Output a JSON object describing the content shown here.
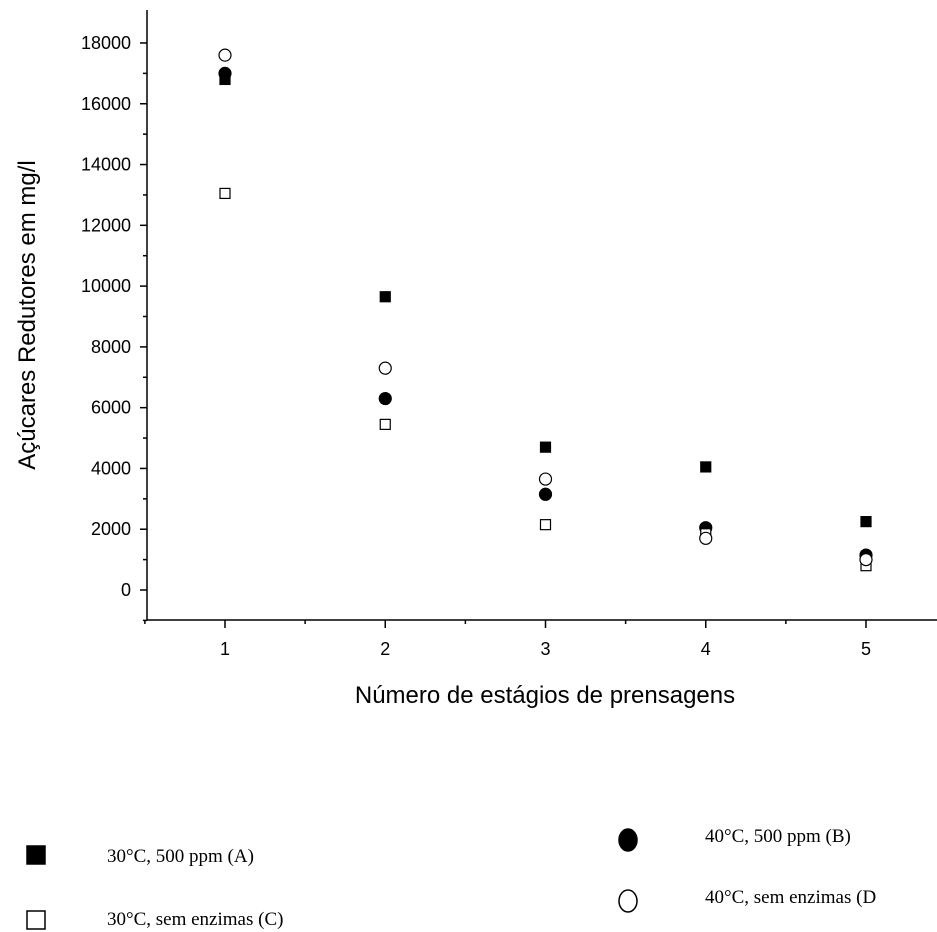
{
  "chart_data": {
    "type": "scatter",
    "title": "",
    "xlabel": "Número de estágios de prensagens",
    "ylabel": "Açúcares Redutores em mg/l",
    "xlim": [
      0.5,
      5.5
    ],
    "ylim": [
      -1000,
      18500
    ],
    "xticks": [
      1,
      2,
      3,
      4,
      5
    ],
    "xtick_labels": [
      "1",
      "2",
      "3",
      "4",
      "5"
    ],
    "yticks": [
      0,
      2000,
      4000,
      6000,
      8000,
      10000,
      12000,
      14000,
      16000,
      18000
    ],
    "ytick_labels": [
      "0",
      "2000",
      "4000",
      "6000",
      "8000",
      "10000",
      "12000",
      "14000",
      "16000",
      "18000"
    ],
    "grid": false,
    "legend_position": "bottom",
    "series": [
      {
        "name": "30°C, 500 ppm (A)",
        "marker": "square-filled",
        "x": [
          1,
          2,
          3,
          4,
          5
        ],
        "y": [
          16800,
          9650,
          4700,
          4050,
          2250
        ]
      },
      {
        "name": "40°C, 500 ppm (B)",
        "marker": "circle-filled",
        "x": [
          1,
          2,
          3,
          4,
          5
        ],
        "y": [
          17000,
          6300,
          3150,
          2050,
          1150
        ]
      },
      {
        "name": "30°C, sem enzimas (C)",
        "marker": "square-open",
        "x": [
          1,
          2,
          3,
          4,
          5
        ],
        "y": [
          13050,
          5450,
          2150,
          1850,
          800
        ]
      },
      {
        "name": "40°C, sem enzimas (D",
        "marker": "circle-open",
        "x": [
          1,
          2,
          3,
          4,
          5
        ],
        "y": [
          17600,
          7300,
          3650,
          1700,
          1000
        ]
      }
    ]
  }
}
